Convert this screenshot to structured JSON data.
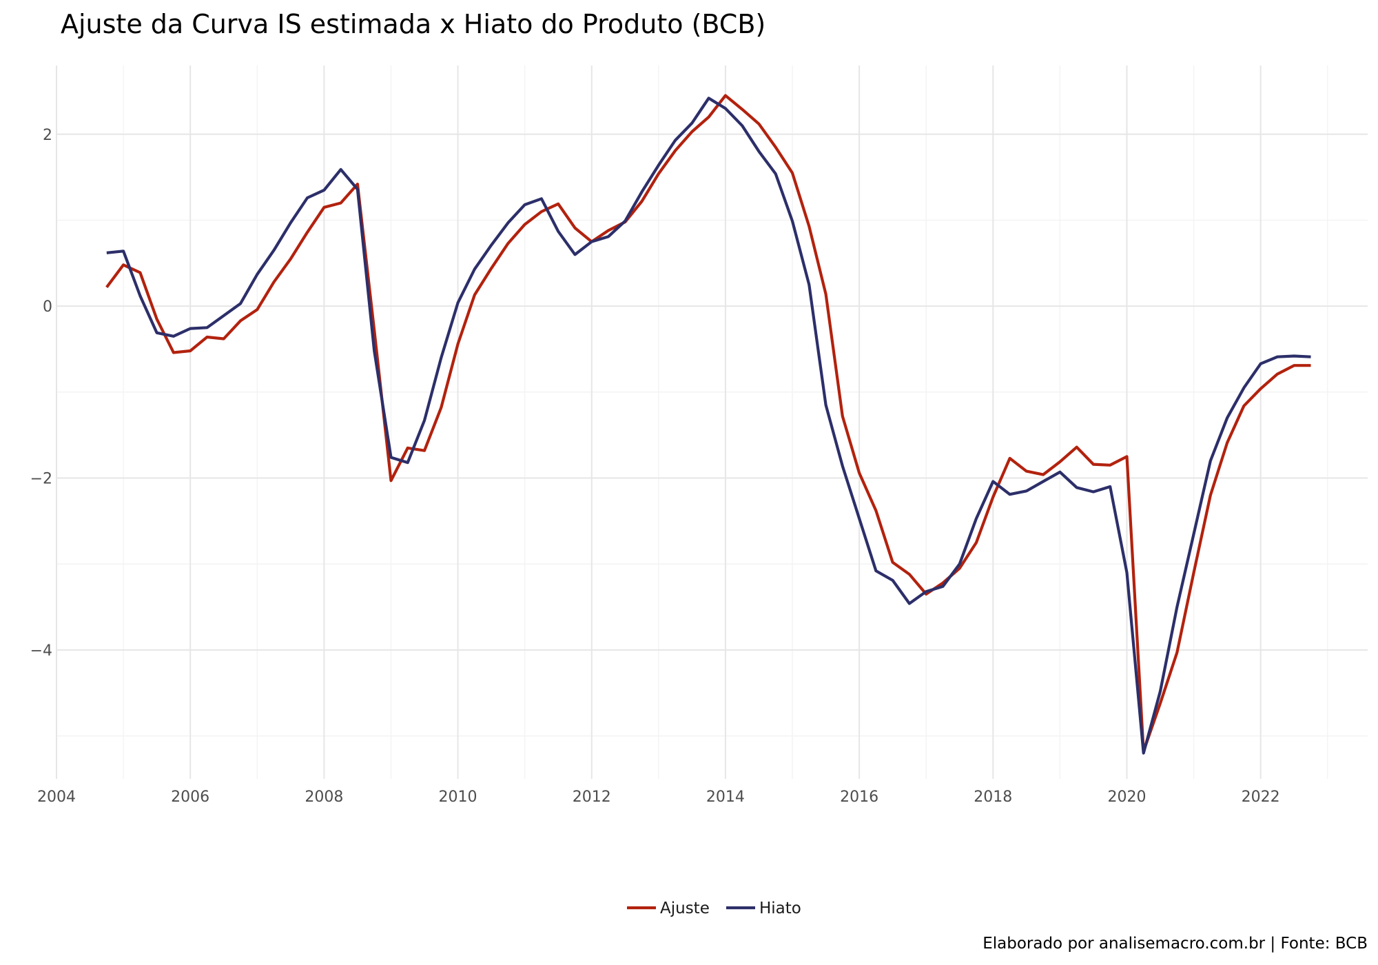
{
  "title": "Ajuste da Curva IS estimada x Hiato do Produto (BCB)",
  "caption": "Elaborado por analisemacro.com.br | Fonte: BCB",
  "colors": {
    "Ajuste": "#b2220e",
    "Hiato": "#2c2f69"
  },
  "chart_data": {
    "type": "line",
    "title": "Ajuste da Curva IS estimada x Hiato do Produto (BCB)",
    "xlabel": "",
    "ylabel": "",
    "xlim": [
      2004.0,
      2023.6
    ],
    "ylim": [
      -5.5,
      2.8
    ],
    "x_ticks": [
      2004,
      2006,
      2008,
      2010,
      2012,
      2014,
      2016,
      2018,
      2020,
      2022
    ],
    "y_ticks": [
      2,
      0,
      -2,
      -4
    ],
    "y_tick_labels": [
      "2",
      "0",
      "−2",
      "−4"
    ],
    "grid": true,
    "legend_position": "bottom",
    "x": [
      "2004-10",
      "2005-01",
      "2005-04",
      "2005-07",
      "2005-10",
      "2006-01",
      "2006-04",
      "2006-07",
      "2006-10",
      "2007-01",
      "2007-04",
      "2007-07",
      "2007-10",
      "2008-01",
      "2008-04",
      "2008-07",
      "2008-10",
      "2009-01",
      "2009-04",
      "2009-07",
      "2009-10",
      "2010-01",
      "2010-04",
      "2010-07",
      "2010-10",
      "2011-01",
      "2011-04",
      "2011-07",
      "2011-10",
      "2012-01",
      "2012-04",
      "2012-07",
      "2012-10",
      "2013-01",
      "2013-04",
      "2013-07",
      "2013-10",
      "2014-01",
      "2014-04",
      "2014-07",
      "2014-10",
      "2015-01",
      "2015-04",
      "2015-07",
      "2015-10",
      "2016-01",
      "2016-04",
      "2016-07",
      "2016-10",
      "2017-01",
      "2017-04",
      "2017-07",
      "2017-10",
      "2018-01",
      "2018-04",
      "2018-07",
      "2018-10",
      "2019-01",
      "2019-04",
      "2019-07",
      "2019-10",
      "2020-01",
      "2020-04",
      "2020-07",
      "2020-10",
      "2021-01",
      "2021-04",
      "2021-07",
      "2021-10",
      "2022-01",
      "2022-04",
      "2022-07",
      "2022-10"
    ],
    "series": [
      {
        "name": "Ajuste",
        "values": [
          0.22,
          0.48,
          0.39,
          -0.15,
          -0.54,
          -0.52,
          -0.36,
          -0.38,
          -0.17,
          -0.04,
          0.28,
          0.55,
          0.86,
          1.15,
          1.2,
          1.42,
          -0.28,
          -2.03,
          -1.65,
          -1.68,
          -1.18,
          -0.44,
          0.13,
          0.44,
          0.73,
          0.95,
          1.1,
          1.19,
          0.91,
          0.75,
          0.88,
          0.98,
          1.22,
          1.54,
          1.81,
          2.03,
          2.2,
          2.45,
          2.29,
          2.12,
          1.85,
          1.55,
          0.93,
          0.14,
          -1.28,
          -1.94,
          -2.38,
          -2.98,
          -3.12,
          -3.35,
          -3.22,
          -3.05,
          -2.75,
          -2.22,
          -1.77,
          -1.92,
          -1.96,
          -1.81,
          -1.64,
          -1.84,
          -1.85,
          -1.75,
          -5.18,
          -4.62,
          -4.03,
          -3.1,
          -2.2,
          -1.59,
          -1.16,
          -0.96,
          -0.79,
          -0.69,
          -0.69
        ]
      },
      {
        "name": "Hiato",
        "values": [
          0.62,
          0.64,
          0.12,
          -0.31,
          -0.35,
          -0.26,
          -0.25,
          -0.11,
          0.03,
          0.37,
          0.65,
          0.97,
          1.26,
          1.35,
          1.59,
          1.36,
          -0.52,
          -1.76,
          -1.82,
          -1.33,
          -0.6,
          0.04,
          0.43,
          0.71,
          0.97,
          1.18,
          1.25,
          0.87,
          0.6,
          0.75,
          0.81,
          0.99,
          1.33,
          1.64,
          1.93,
          2.13,
          2.42,
          2.3,
          2.1,
          1.8,
          1.54,
          0.99,
          0.25,
          -1.15,
          -1.86,
          -2.47,
          -3.08,
          -3.19,
          -3.46,
          -3.32,
          -3.26,
          -3.0,
          -2.47,
          -2.04,
          -2.19,
          -2.15,
          -2.04,
          -1.93,
          -2.11,
          -2.16,
          -2.1,
          -3.1,
          -5.2,
          -4.48,
          -3.5,
          -2.65,
          -1.8,
          -1.3,
          -0.95,
          -0.67,
          -0.59,
          -0.58,
          -0.59
        ]
      }
    ]
  }
}
